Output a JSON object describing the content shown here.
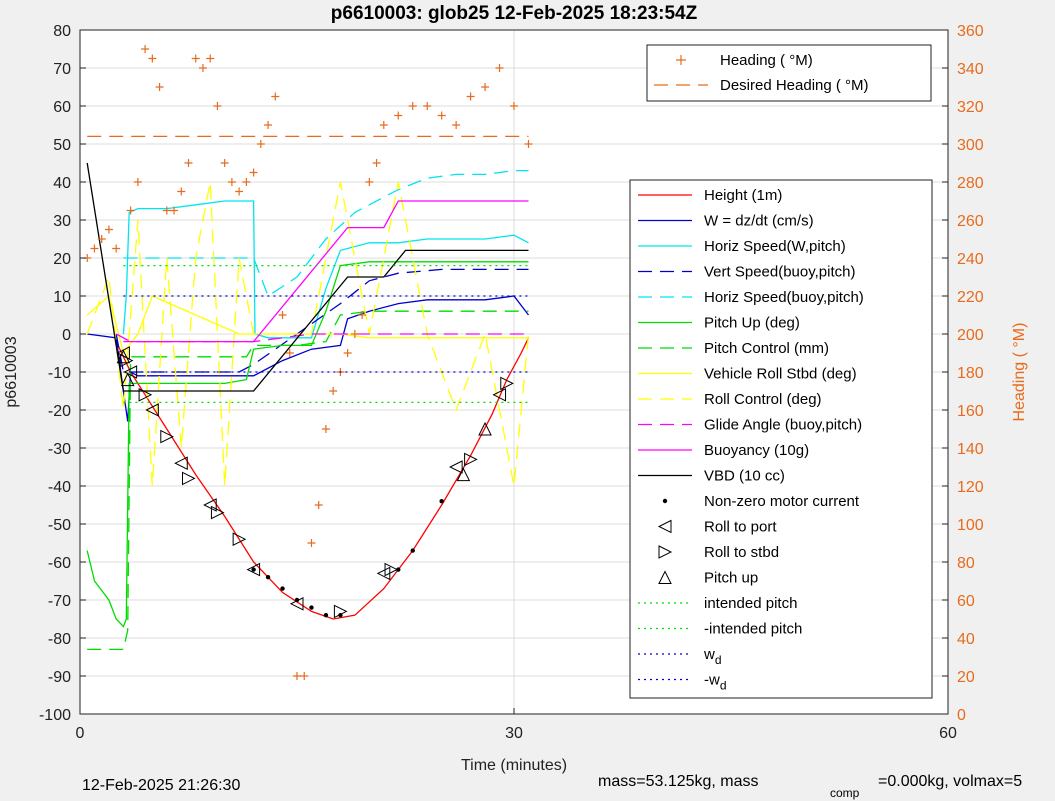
{
  "chart_data": {
    "type": "line",
    "title": "p6610003: glob25 12-Feb-2025 18:23:54Z",
    "xlabel": "Time (minutes)",
    "ylabel": "p6610003",
    "ylabel_right": "Heading ( °M)",
    "xlim": [
      0,
      60
    ],
    "ylim": [
      -100,
      80
    ],
    "ylim_right": [
      0,
      360
    ],
    "x_ticks": [
      0,
      30,
      60
    ],
    "y_ticks": [
      -100,
      -90,
      -80,
      -70,
      -60,
      -50,
      -40,
      -30,
      -20,
      -10,
      0,
      10,
      20,
      30,
      40,
      50,
      60,
      70,
      80
    ],
    "y_ticks_right": [
      0,
      20,
      40,
      60,
      80,
      100,
      120,
      140,
      160,
      180,
      200,
      220,
      240,
      260,
      280,
      300,
      320,
      340,
      360
    ],
    "grid": true,
    "legend_top": [
      {
        "label": "Heading ( °M)",
        "color": "#e86b1c",
        "style": "plus"
      },
      {
        "label": "Desired Heading ( °M)",
        "color": "#e86b1c",
        "style": "dashed"
      }
    ],
    "legend": [
      {
        "label": "Height (1m)",
        "color": "#ff0000",
        "style": "solid"
      },
      {
        "label": "W = dz/dt (cm/s)",
        "color": "#0000cc",
        "style": "solid"
      },
      {
        "label": "Horiz Speed(W,pitch)",
        "color": "#00e5ee",
        "style": "solid"
      },
      {
        "label": "Vert Speed(buoy,pitch)",
        "color": "#0000cc",
        "style": "dashed"
      },
      {
        "label": "Horiz Speed(buoy,pitch)",
        "color": "#00e5ee",
        "style": "dashed"
      },
      {
        "label": "Pitch Up (deg)",
        "color": "#00dd00",
        "style": "solid"
      },
      {
        "label": "Pitch Control (mm)",
        "color": "#00dd00",
        "style": "dashed"
      },
      {
        "label": "Vehicle Roll Stbd (deg)",
        "color": "#ffff00",
        "style": "solid"
      },
      {
        "label": "Roll Control (deg)",
        "color": "#ffff00",
        "style": "dashed"
      },
      {
        "label": "Glide Angle (buoy,pitch)",
        "color": "#ff00ff",
        "style": "dashed"
      },
      {
        "label": "Buoyancy (10g)",
        "color": "#ff00ff",
        "style": "solid"
      },
      {
        "label": "VBD (10 cc)",
        "color": "#000000",
        "style": "solid"
      },
      {
        "label": "Non-zero motor current",
        "color": "#000000",
        "style": "dot"
      },
      {
        "label": "Roll to port",
        "color": "#000000",
        "style": "tri-left"
      },
      {
        "label": "Roll to stbd",
        "color": "#000000",
        "style": "tri-right"
      },
      {
        "label": "Pitch up",
        "color": "#000000",
        "style": "tri-up"
      },
      {
        "label": "intended pitch",
        "color": "#00dd00",
        "style": "dotted"
      },
      {
        "label": "-intended pitch",
        "color": "#00dd00",
        "style": "dotted"
      },
      {
        "label": "w",
        "sub": "d",
        "color": "#0000cc",
        "style": "dotted"
      },
      {
        "label": "-w",
        "sub": "d",
        "color": "#0000cc",
        "style": "dotted"
      }
    ],
    "series": [
      {
        "name": "Height (1m)",
        "axis": "left",
        "color": "#ff0000",
        "style": "solid",
        "x": [
          2.5,
          3.5,
          4.5,
          6,
          8,
          10,
          12,
          14,
          16,
          17.5,
          19,
          21,
          23,
          25,
          27,
          28.5,
          29.5,
          30.5,
          31
        ],
        "y": [
          -2,
          -10,
          -16,
          -25,
          -37,
          -48,
          -60,
          -68,
          -73,
          -75,
          -74,
          -67,
          -57,
          -45,
          -32,
          -21,
          -12,
          -5,
          -1
        ]
      },
      {
        "name": "W = dz/dt (cm/s)",
        "axis": "left",
        "color": "#0000cc",
        "style": "solid",
        "x": [
          0.5,
          2.5,
          3.0,
          3.3,
          3.5,
          4,
          5,
          8,
          11,
          12,
          14,
          16,
          18,
          18.5,
          20,
          22,
          24,
          26,
          28,
          30,
          31
        ],
        "y": [
          0,
          -1,
          -15,
          -23,
          -10,
          -11,
          -11,
          -11,
          -11,
          -11,
          -7,
          -4,
          -3,
          4,
          6,
          8,
          9,
          9,
          9,
          10,
          5
        ]
      },
      {
        "name": "Horiz Speed(W,pitch)",
        "axis": "left",
        "color": "#00e5ee",
        "style": "solid",
        "x": [
          3.0,
          3.2,
          3.4,
          4,
          6,
          8,
          10,
          11,
          12,
          12.1,
          13,
          14,
          15,
          16,
          17,
          18,
          20,
          22,
          24,
          26,
          28,
          30,
          31
        ],
        "y": [
          0,
          10,
          32,
          33,
          33,
          34,
          35,
          35,
          35,
          0,
          -1,
          -1,
          -1,
          -1,
          12,
          22,
          24,
          24,
          25,
          25,
          25,
          26,
          24
        ]
      },
      {
        "name": "Vert Speed(buoy,pitch)",
        "axis": "left",
        "color": "#0000cc",
        "style": "dashed",
        "x": [
          2.5,
          3,
          11,
          12,
          15,
          18,
          20,
          22,
          25,
          28,
          30,
          31
        ],
        "y": [
          0,
          -10,
          -10,
          -8,
          0,
          8,
          14,
          16,
          17,
          17,
          17,
          17
        ]
      },
      {
        "name": "Horiz Speed(buoy,pitch)",
        "axis": "left",
        "color": "#00e5ee",
        "style": "dashed",
        "x": [
          3,
          5,
          10,
          12,
          13,
          15,
          17,
          19,
          22,
          24,
          26,
          28,
          30,
          31
        ],
        "y": [
          20,
          20,
          20,
          20,
          10,
          15,
          25,
          32,
          38,
          41,
          42,
          42,
          43,
          43
        ]
      },
      {
        "name": "Pitch Up (deg)",
        "axis": "left",
        "color": "#00dd00",
        "style": "solid",
        "x": [
          0.5,
          1,
          2,
          2.5,
          3,
          3.2,
          3.4,
          4,
          6,
          8,
          10,
          11.5,
          12,
          14,
          16,
          17,
          18,
          20,
          22,
          24,
          26,
          28,
          30,
          31
        ],
        "y": [
          -57,
          -65,
          -70,
          -75,
          -77,
          -75,
          -13,
          -13,
          -13,
          -13,
          -13,
          -12,
          -4,
          -3,
          -3,
          6,
          18,
          19,
          19,
          19,
          19,
          19,
          19,
          19
        ]
      },
      {
        "name": "Pitch Control (mm)",
        "axis": "left",
        "color": "#00dd00",
        "style": "dashed",
        "x": [
          0.5,
          2.5,
          3,
          3.3,
          3.5,
          5,
          8,
          10,
          11.5,
          12,
          15,
          17,
          18,
          20,
          22,
          24,
          26,
          28,
          30,
          31
        ],
        "y": [
          -83,
          -83,
          -83,
          -78,
          -6,
          -6,
          -6,
          -6,
          -6,
          -3,
          -3,
          -2,
          5,
          6,
          6,
          6,
          6,
          6,
          6,
          6
        ]
      },
      {
        "name": "Vehicle Roll Stbd (deg)",
        "axis": "left",
        "color": "#ffff00",
        "style": "solid",
        "x": [
          0.5,
          2,
          3,
          4,
          5,
          8,
          11,
          12,
          14,
          16,
          18,
          20,
          22,
          24,
          26,
          28,
          30,
          31
        ],
        "y": [
          5,
          10,
          -5,
          0,
          10,
          5,
          0,
          0,
          0,
          0,
          0,
          -1,
          -1,
          -1,
          -1,
          -1,
          -1,
          -1
        ]
      },
      {
        "name": "Roll Control (deg)",
        "axis": "left",
        "color": "#ffff00",
        "style": "dashed",
        "x": [
          0.5,
          2,
          3,
          4,
          5,
          6,
          7,
          8,
          9,
          10,
          11,
          12,
          16,
          18,
          20,
          22,
          24,
          26,
          28,
          30,
          31
        ],
        "y": [
          0,
          15,
          -20,
          30,
          -40,
          20,
          -30,
          20,
          40,
          -40,
          20,
          0,
          0,
          40,
          0,
          40,
          0,
          -20,
          0,
          -40,
          0
        ]
      },
      {
        "name": "Glide Angle (buoy,pitch)",
        "axis": "left",
        "color": "#ff00ff",
        "style": "dashed",
        "x": [
          2.5,
          3.5,
          10,
          12,
          14,
          16,
          18,
          20,
          24,
          28,
          31
        ],
        "y": [
          0,
          -2,
          -2,
          -2,
          -1,
          0,
          0,
          0,
          0,
          0,
          0
        ]
      },
      {
        "name": "Buoyancy (10g)",
        "axis": "left",
        "color": "#ff00ff",
        "style": "solid",
        "x": [
          3,
          12,
          18.5,
          21,
          22,
          30,
          31
        ],
        "y": [
          -2,
          -2,
          28,
          28,
          35,
          35,
          35
        ]
      },
      {
        "name": "VBD (10 cc)",
        "axis": "left",
        "color": "#000000",
        "style": "solid",
        "x": [
          0.5,
          3,
          4,
          12,
          18.5,
          21,
          22.5,
          30,
          31
        ],
        "y": [
          45,
          -15,
          -15,
          -15,
          15,
          15,
          22,
          22,
          22
        ]
      },
      {
        "name": "Heading ( °M)",
        "axis": "right",
        "color": "#e86b1c",
        "style": "plus",
        "x": [
          0.5,
          1,
          1.5,
          2,
          2.5,
          3.5,
          4,
          4.5,
          5,
          5.5,
          6,
          6.5,
          7,
          7.5,
          8,
          8.5,
          9,
          9.5,
          10,
          10.5,
          11,
          11.5,
          12,
          12.5,
          13,
          13.5,
          14,
          14.5,
          15,
          15.5,
          16,
          16.5,
          17,
          17.5,
          18,
          18.5,
          19,
          19.5,
          20,
          20.5,
          21,
          22,
          23,
          24,
          25,
          26,
          27,
          28,
          29,
          30,
          31
        ],
        "y": [
          240,
          245,
          250,
          255,
          245,
          265,
          280,
          350,
          345,
          330,
          265,
          265,
          275,
          290,
          345,
          340,
          345,
          320,
          290,
          280,
          275,
          280,
          285,
          300,
          310,
          325,
          210,
          190,
          20,
          20,
          90,
          110,
          150,
          170,
          180,
          190,
          200,
          210,
          280,
          290,
          310,
          315,
          320,
          320,
          315,
          310,
          325,
          330,
          340,
          320,
          300
        ]
      },
      {
        "name": "Desired Heading ( °M)",
        "axis": "right",
        "color": "#e86b1c",
        "style": "dashed",
        "x": [
          0.5,
          31
        ],
        "y": [
          304,
          304
        ]
      },
      {
        "name": "intended pitch",
        "axis": "left",
        "color": "#00dd00",
        "style": "dotted",
        "x": [
          3,
          31
        ],
        "y": [
          18,
          18
        ]
      },
      {
        "name": "-intended pitch",
        "axis": "left",
        "color": "#00dd00",
        "style": "dotted",
        "x": [
          3,
          31
        ],
        "y": [
          -18,
          -18
        ]
      },
      {
        "name": "w d",
        "axis": "left",
        "color": "#0000cc",
        "style": "dotted",
        "x": [
          3,
          31
        ],
        "y": [
          10,
          10
        ]
      },
      {
        "name": "-w d",
        "axis": "left",
        "color": "#0000cc",
        "style": "dotted",
        "x": [
          3,
          31
        ],
        "y": [
          -10,
          -10
        ]
      }
    ],
    "markers": {
      "roll_to_port": {
        "x": [
          3,
          3.5,
          5,
          7,
          9,
          12,
          15,
          21,
          26,
          29
        ],
        "y": [
          -5,
          -10,
          -20,
          -34,
          -45,
          -62,
          -71,
          -63,
          -35,
          -16
        ]
      },
      "roll_to_stbd": {
        "x": [
          3.2,
          4.5,
          6,
          7.5,
          9.5,
          11,
          18,
          21.5,
          27,
          29.5
        ],
        "y": [
          -7,
          -16,
          -27,
          -38,
          -47,
          -54,
          -73,
          -62,
          -33,
          -13
        ]
      },
      "pitch_up": {
        "x": [
          3,
          3.3,
          26.5,
          28
        ],
        "y": [
          -6,
          -12,
          -37,
          -25
        ]
      },
      "non_zero_motor_current": {
        "x": [
          12,
          13,
          14,
          15,
          16,
          17,
          18,
          22,
          23,
          25
        ],
        "y": [
          -62,
          -64,
          -67,
          -70,
          -72,
          -74,
          -74,
          -62,
          -57,
          -44
        ]
      }
    },
    "footer_left": "12-Feb-2025 21:26:30",
    "footer_right": "mass=53.125kg, mass",
    "footer_sub": "comp",
    "footer_right2": "=0.000kg, volmax=5"
  }
}
